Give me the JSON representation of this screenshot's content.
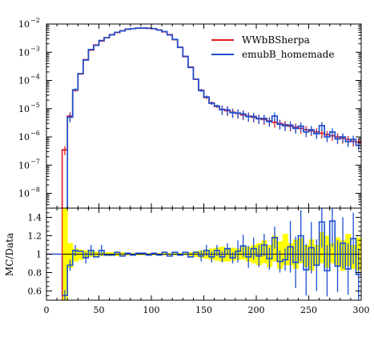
{
  "chart_data": [
    {
      "type": "line",
      "panel": "main",
      "title": "",
      "xlabel": "",
      "ylabel": "",
      "xlim": [
        0,
        300
      ],
      "ylim": [
        3e-09,
        0.01
      ],
      "yscale": "log",
      "grid": false,
      "legend_position": "top-right",
      "x_edges": [
        0,
        5,
        10,
        15,
        20,
        25,
        30,
        35,
        40,
        45,
        50,
        55,
        60,
        65,
        70,
        75,
        80,
        85,
        90,
        95,
        100,
        105,
        110,
        115,
        120,
        125,
        130,
        135,
        140,
        145,
        150,
        155,
        160,
        165,
        170,
        175,
        180,
        185,
        190,
        195,
        200,
        205,
        210,
        215,
        220,
        225,
        230,
        235,
        240,
        245,
        250,
        255,
        260,
        265,
        270,
        275,
        280,
        285,
        290,
        295,
        300
      ],
      "xticks": [
        0,
        50,
        100,
        150,
        200,
        250,
        300
      ],
      "xtick_labels": [
        "0",
        "50",
        "100",
        "150",
        "200",
        "250",
        "300"
      ],
      "yticks": [
        1e-08,
        1e-07,
        1e-06,
        1e-05,
        0.0001,
        0.001,
        0.01
      ],
      "ytick_labels": [
        "10",
        "10",
        "10",
        "10",
        "10",
        "10",
        "10"
      ],
      "ytick_exponents": [
        "−8",
        "−7",
        "−6",
        "−5",
        "−4",
        "−3",
        "−2"
      ],
      "series": [
        {
          "name": "WWbBSherpa",
          "color": "#e41a1c",
          "values": [
            0,
            0,
            0,
            3.5e-07,
            5.5e-06,
            4.5e-05,
            0.00017,
            0.00055,
            0.0012,
            0.0018,
            0.0025,
            0.0033,
            0.0042,
            0.005,
            0.0058,
            0.0065,
            0.0069,
            0.0071,
            0.0072,
            0.0071,
            0.0068,
            0.0062,
            0.0053,
            0.0042,
            0.0028,
            0.0015,
            0.0007,
            0.0003,
            0.00011,
            4.5e-05,
            2.5e-05,
            1.6e-05,
            1.2e-05,
            9.5e-06,
            8.5e-06,
            7.5e-06,
            6.8e-06,
            6e-06,
            5.5e-06,
            5e-06,
            4.5e-06,
            4.1e-06,
            3.7e-06,
            3.3e-06,
            3e-06,
            2.7e-06,
            2.4e-06,
            2.2e-06,
            2e-06,
            1.8e-06,
            1.65e-06,
            1.5e-06,
            1.35e-06,
            1.2e-06,
            1.1e-06,
            1e-06,
            9e-07,
            8e-07,
            7e-07,
            6.5e-07
          ]
        },
        {
          "name": "emubB_homemade",
          "color": "#1f4fd1",
          "values": [
            0,
            0,
            0,
            0,
            5e-06,
            4.7e-05,
            0.000175,
            0.00053,
            0.00125,
            0.00175,
            0.0026,
            0.00325,
            0.00415,
            0.0051,
            0.0057,
            0.0066,
            0.00685,
            0.00715,
            0.0073,
            0.007,
            0.0069,
            0.0061,
            0.0054,
            0.0041,
            0.00285,
            0.00148,
            0.00072,
            0.00029,
            0.000112,
            4.4e-05,
            2.6e-05,
            1.55e-05,
            1.25e-05,
            9.2e-06,
            9e-06,
            7.2e-06,
            7e-06,
            6.5e-06,
            5.3e-06,
            5.3e-06,
            4.4e-06,
            4.5e-06,
            3.5e-06,
            5.5e-06,
            2.8e-06,
            2.5e-06,
            2.6e-06,
            2e-06,
            2.4e-06,
            1.5e-06,
            1.8e-06,
            1.3e-06,
            2.5e-06,
            1e-06,
            1.5e-06,
            8.5e-07,
            1e-06,
            6.8e-07,
            8.2e-07,
            5e-07
          ]
        }
      ]
    },
    {
      "type": "line",
      "panel": "ratio",
      "title": "",
      "xlabel": "",
      "ylabel": "MC/Data",
      "xlim": [
        0,
        300
      ],
      "ylim": [
        0.5,
        1.5
      ],
      "grid": false,
      "x_edges": [
        0,
        5,
        10,
        15,
        20,
        25,
        30,
        35,
        40,
        45,
        50,
        55,
        60,
        65,
        70,
        75,
        80,
        85,
        90,
        95,
        100,
        105,
        110,
        115,
        120,
        125,
        130,
        135,
        140,
        145,
        150,
        155,
        160,
        165,
        170,
        175,
        180,
        185,
        190,
        195,
        200,
        205,
        210,
        215,
        220,
        225,
        230,
        235,
        240,
        245,
        250,
        255,
        260,
        265,
        270,
        275,
        280,
        285,
        290,
        295,
        300
      ],
      "xticks": [
        0,
        50,
        100,
        150,
        200,
        250,
        300
      ],
      "xtick_labels": [
        "0",
        "50",
        "100",
        "150",
        "200",
        "250",
        "300"
      ],
      "yticks": [
        0.6,
        0.8,
        1.0,
        1.2,
        1.4
      ],
      "ytick_labels": [
        "0.6",
        "0.8",
        "1",
        "1.2",
        "1.4"
      ],
      "reference_line": 1.0,
      "uncertainty_band": {
        "color": "#ffff00",
        "lower": [
          1,
          1,
          1,
          0.5,
          0.85,
          0.92,
          0.94,
          0.96,
          0.97,
          0.97,
          0.98,
          0.98,
          0.98,
          0.98,
          0.98,
          0.99,
          0.99,
          0.99,
          0.99,
          0.99,
          0.99,
          0.99,
          0.99,
          0.99,
          0.99,
          0.99,
          0.99,
          0.98,
          0.97,
          0.96,
          0.95,
          0.94,
          0.93,
          0.92,
          0.92,
          0.93,
          0.94,
          0.94,
          0.92,
          0.9,
          0.88,
          0.9,
          0.86,
          0.92,
          0.84,
          0.88,
          0.88,
          0.84,
          0.9,
          0.86,
          0.82,
          0.88,
          0.9,
          0.85,
          0.9,
          0.86,
          0.82,
          0.87,
          0.84,
          0.82
        ],
        "upper": [
          1,
          1,
          1,
          1.5,
          1.12,
          1.06,
          1.05,
          1.04,
          1.03,
          1.03,
          1.02,
          1.02,
          1.02,
          1.02,
          1.02,
          1.01,
          1.01,
          1.01,
          1.01,
          1.01,
          1.01,
          1.01,
          1.01,
          1.01,
          1.01,
          1.01,
          1.01,
          1.02,
          1.03,
          1.04,
          1.05,
          1.06,
          1.07,
          1.08,
          1.06,
          1.07,
          1.06,
          1.08,
          1.08,
          1.1,
          1.12,
          1.15,
          1.1,
          1.2,
          1.14,
          1.22,
          1.12,
          1.16,
          1.18,
          1.1,
          1.16,
          1.1,
          1.24,
          1.2,
          1.12,
          1.18,
          1.15,
          1.22,
          1.1,
          1.18
        ]
      },
      "series": [
        {
          "name": "emubB_homemade",
          "color": "#1f4fd1",
          "values": [
            1,
            1,
            1,
            0.55,
            0.88,
            1.04,
            1.03,
            0.96,
            1.04,
            0.97,
            1.04,
            0.99,
            0.99,
            1.02,
            0.98,
            1.01,
            0.99,
            1.01,
            1.01,
            0.99,
            1.01,
            0.99,
            1.02,
            0.98,
            1.02,
            0.99,
            1.02,
            0.97,
            1.02,
            0.98,
            1.04,
            0.97,
            1.04,
            0.97,
            1.06,
            0.96,
            1.03,
            1.09,
            0.97,
            1.06,
            0.98,
            1.1,
            0.95,
            1.18,
            0.92,
            0.94,
            1.08,
            0.91,
            1.2,
            0.83,
            1.07,
            0.88,
            1.35,
            0.82,
            1.36,
            0.87,
            1.12,
            0.84,
            1.17,
            0.78
          ]
        }
      ]
    }
  ]
}
